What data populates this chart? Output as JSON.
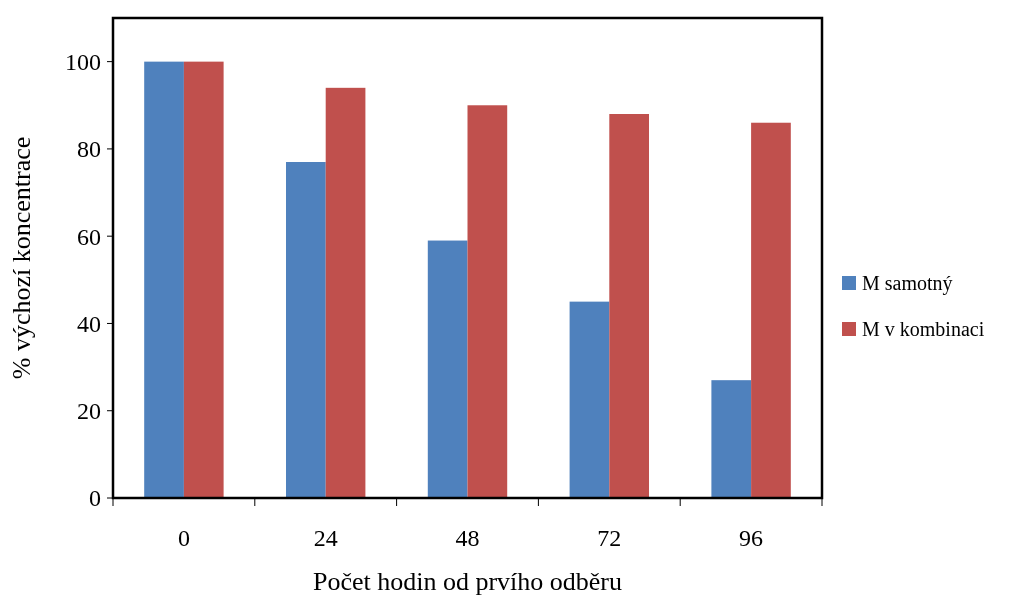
{
  "chart_data": {
    "type": "bar",
    "xlabel": "Počet hodin od prvího odběru",
    "ylabel": "% výchozí koncentrace",
    "categories": [
      "0",
      "24",
      "48",
      "72",
      "96"
    ],
    "series": [
      {
        "name": "M samotný",
        "color": "#4f81bd",
        "values": [
          100,
          77,
          59,
          45,
          27
        ]
      },
      {
        "name": "M v kombinaci",
        "color": "#c0504d",
        "values": [
          100,
          94,
          90,
          88,
          86
        ]
      }
    ],
    "ylim": [
      0,
      110
    ],
    "yticks": [
      0,
      20,
      40,
      60,
      80,
      100
    ],
    "grid": false,
    "legend": "right"
  }
}
